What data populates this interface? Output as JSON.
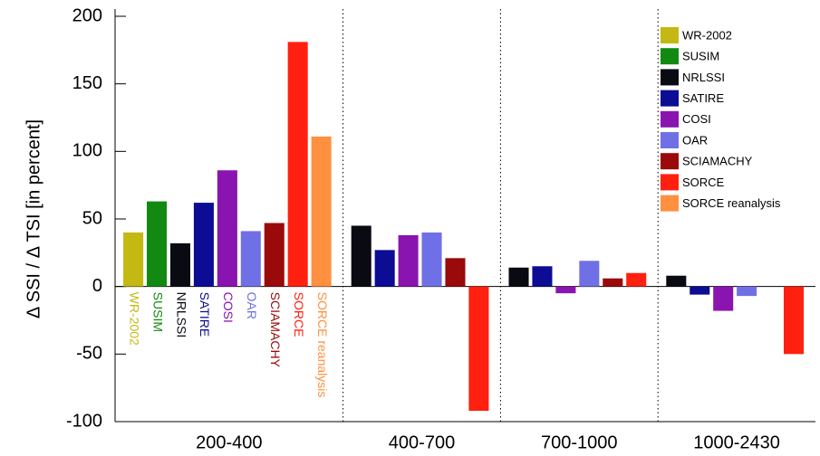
{
  "chart_data": {
    "type": "bar",
    "ylabel": "Δ SSI  /  Δ TSI  [in percent]",
    "categories": [
      "200-400",
      "400-700",
      "700-1000",
      "1000-2430"
    ],
    "series": [
      {
        "name": "WR-2002",
        "color": "#c4b812",
        "values": [
          40,
          null,
          null,
          null
        ]
      },
      {
        "name": "SUSIM",
        "color": "#128a12",
        "values": [
          63,
          null,
          null,
          null
        ]
      },
      {
        "name": "NRLSSI",
        "color": "#0a0a12",
        "values": [
          32,
          45,
          14,
          8
        ]
      },
      {
        "name": "SATIRE",
        "color": "#0c0c94",
        "values": [
          62,
          27,
          15,
          -6
        ]
      },
      {
        "name": "COSI",
        "color": "#8a14b0",
        "values": [
          86,
          38,
          -5,
          -18
        ]
      },
      {
        "name": "OAR",
        "color": "#7070e6",
        "values": [
          41,
          40,
          19,
          -7
        ]
      },
      {
        "name": "SCIAMACHY",
        "color": "#9a0a0a",
        "values": [
          47,
          21,
          6,
          null
        ]
      },
      {
        "name": "SORCE",
        "color": "#ff2010",
        "values": [
          181,
          -92,
          10,
          -50
        ]
      },
      {
        "name": "SORCE reanalysis",
        "color": "#ff9040",
        "values": [
          111,
          null,
          null,
          null
        ]
      }
    ],
    "ylim": [
      -100,
      200
    ],
    "yticks": [
      -100,
      -50,
      0,
      50,
      100,
      150,
      200
    ],
    "legend": "upper right"
  }
}
